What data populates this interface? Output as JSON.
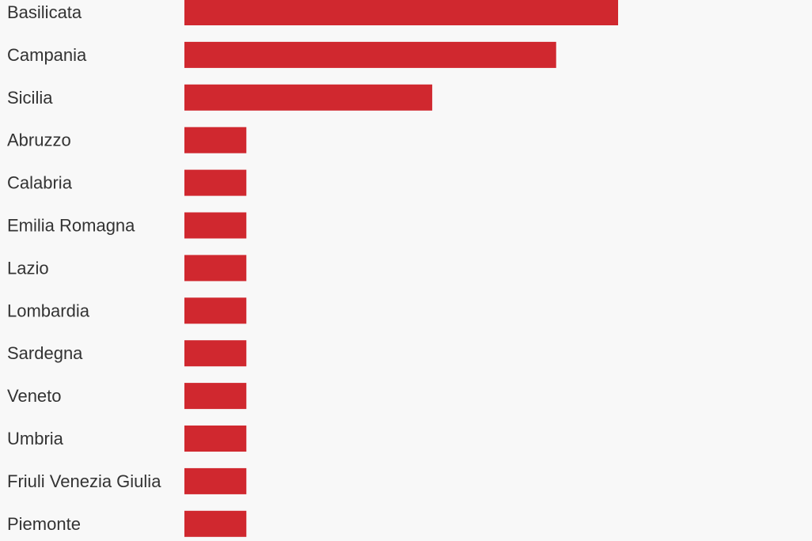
{
  "chart_data": {
    "type": "bar",
    "orientation": "horizontal",
    "title": "",
    "xlabel": "",
    "ylabel": "",
    "categories": [
      "Basilicata",
      "Campania",
      "Sicilia",
      "Abruzzo",
      "Calabria",
      "Emilia Romagna",
      "Lazio",
      "Lombardia",
      "Sardegna",
      "Veneto",
      "Umbria",
      "Friuli Venezia Giulia",
      "Piemonte"
    ],
    "values": [
      7,
      6,
      4,
      1,
      1,
      1,
      1,
      1,
      1,
      1,
      1,
      1,
      1
    ],
    "xlim": [
      0,
      7
    ],
    "grid": false,
    "legend": "none",
    "colors": {
      "bar": "#d0282f",
      "background": "#f8f8f8",
      "label": "#333333"
    }
  }
}
